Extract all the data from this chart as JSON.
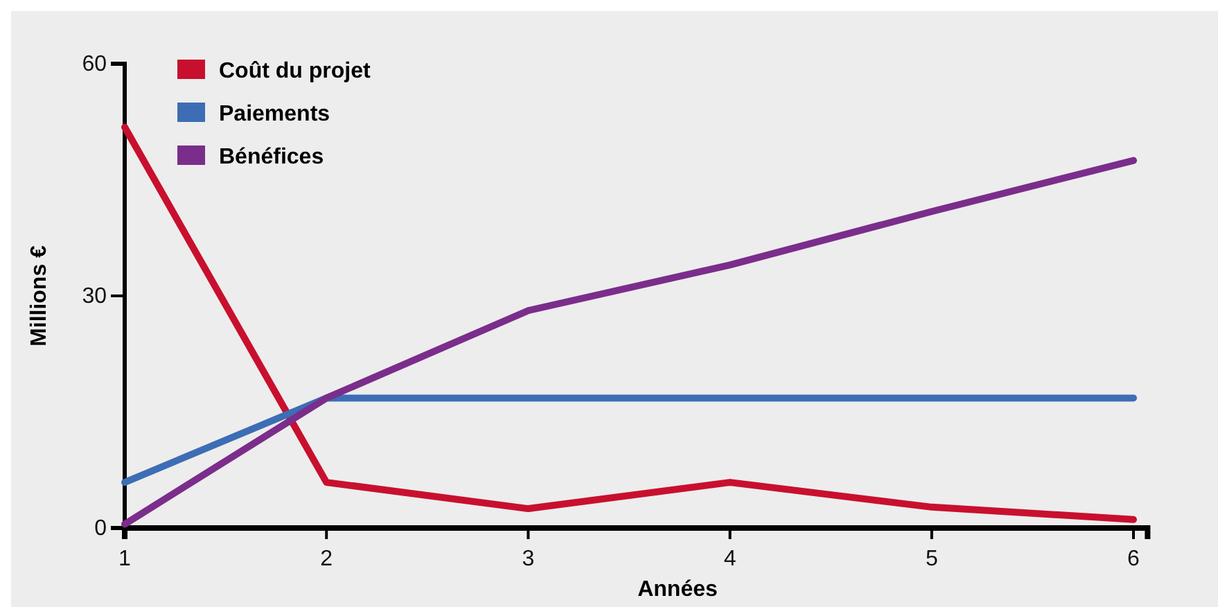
{
  "chart_data": {
    "type": "line",
    "xlabel": "Années",
    "ylabel": "Millions €",
    "x": [
      1,
      2,
      3,
      4,
      5,
      6
    ],
    "xlim": [
      1,
      6.07
    ],
    "xticks": [
      1,
      2,
      3,
      4,
      5,
      6
    ],
    "ylim": [
      0,
      60
    ],
    "yticks": [
      0,
      30,
      60
    ],
    "legend": "top left",
    "grid": false,
    "marker": "none",
    "line_style": "solid",
    "series": [
      {
        "name": "Coût du projet",
        "color": "#c8102e",
        "values": [
          51.8,
          5.9,
          2.5,
          5.9,
          2.7,
          1.1
        ]
      },
      {
        "name": "Paiements",
        "color": "#3d6db5",
        "values": [
          5.9,
          16.8,
          16.8,
          16.8,
          16.8,
          16.8
        ]
      },
      {
        "name": "Bénéfices",
        "color": "#7b2d8b",
        "values": [
          0.5,
          16.8,
          28.1,
          34,
          40.9,
          47.5
        ]
      }
    ]
  }
}
